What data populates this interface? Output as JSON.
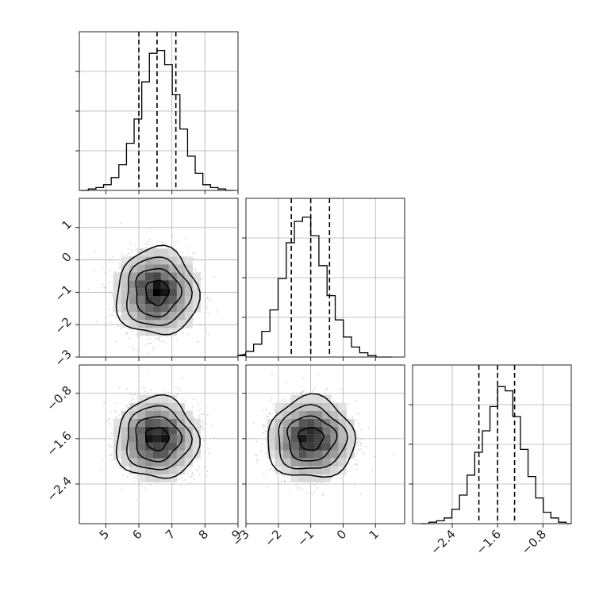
{
  "chart_data": {
    "type": "corner",
    "parameters": [
      {
        "range": [
          4.2,
          9.0
        ],
        "ticks": [
          5,
          6,
          7,
          8,
          9
        ],
        "tick_labels": [
          "5",
          "6",
          "7",
          "8",
          "9"
        ],
        "mean": 6.55,
        "sigma": 0.55,
        "quantiles": [
          6.0,
          6.55,
          7.12
        ]
      },
      {
        "range": [
          -3.0,
          1.9
        ],
        "ticks": [
          -3,
          -2,
          -1,
          0,
          1
        ],
        "tick_labels": [
          "−3",
          "−2",
          "−1",
          "0",
          "1"
        ],
        "mean": -1.0,
        "sigma": 0.6,
        "quantiles": [
          -1.6,
          -1.0,
          -0.42
        ]
      },
      {
        "range": [
          -3.1,
          -0.3
        ],
        "ticks": [
          -2.4,
          -1.6,
          -0.8
        ],
        "tick_labels": [
          "−2.4",
          "−1.6",
          "−0.8"
        ],
        "mean": -1.6,
        "sigma": 0.32,
        "quantiles": [
          -1.93,
          -1.6,
          -1.3
        ]
      }
    ],
    "histograms": [
      {
        "counts": [
          0,
          1,
          2,
          4,
          9,
          18,
          33,
          50,
          76,
          96,
          98,
          88,
          67,
          43,
          24,
          12,
          4,
          2,
          1,
          0
        ],
        "ylim": [
          0,
          100
        ]
      },
      {
        "counts": [
          1,
          2,
          4,
          9,
          18,
          33,
          55,
          80,
          95,
          98,
          85,
          64,
          43,
          26,
          14,
          7,
          3,
          1,
          0,
          0
        ],
        "ylim": [
          0,
          100
        ]
      },
      {
        "counts": [
          0,
          1,
          2,
          4,
          10,
          20,
          34,
          50,
          65,
          82,
          96,
          93,
          75,
          52,
          33,
          18,
          8,
          4,
          1,
          0
        ],
        "ylim": [
          0,
          100
        ]
      }
    ],
    "grid": true
  }
}
